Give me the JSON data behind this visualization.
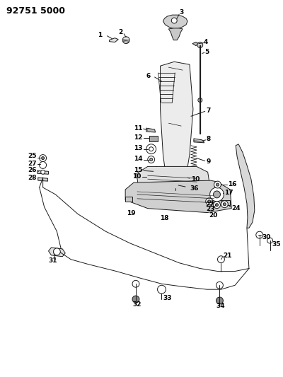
{
  "title": "92751 5000",
  "bg_color": "#ffffff",
  "line_color": "#1a1a1a",
  "label_color": "#000000",
  "title_fontsize": 9,
  "label_fontsize": 6.5,
  "fig_width": 4.0,
  "fig_height": 5.33,
  "dpi": 100
}
